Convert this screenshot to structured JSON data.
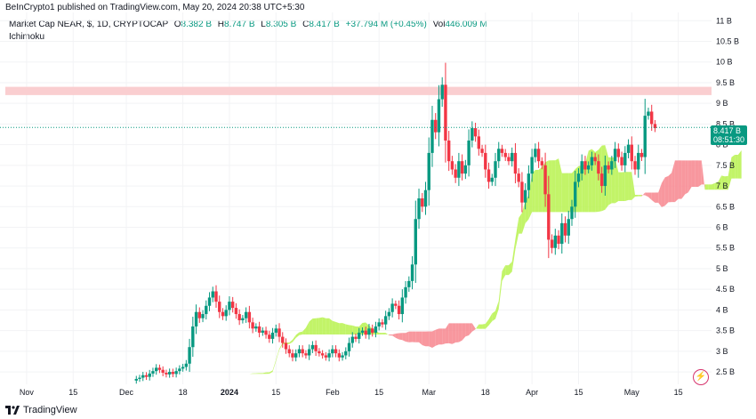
{
  "header": {
    "published": "BeInCrypto1 published on TradingView.com, May 20, 2024 20:38 UTC+5:30"
  },
  "legend": {
    "symbol": "Market Cap NEAR, $, 1D, CRYPTOCAP",
    "o_label": "O",
    "o_value": "8.382 B",
    "h_label": "H",
    "h_value": "8.747 B",
    "l_label": "L",
    "l_value": "8.305 B",
    "c_label": "C",
    "c_value": "8.417 B",
    "change": "+37.794 M (+0.45%)",
    "vol_label": "Vol",
    "vol_value": "446.009 M"
  },
  "indicator": {
    "name": "Ichimoku"
  },
  "price_tag": {
    "price": "8.417 B",
    "countdown": "08:51:30"
  },
  "footer": {
    "brand": "TradingView"
  },
  "colors": {
    "up": "#089981",
    "down": "#f23645",
    "cloud_bull": "#b7f24d",
    "cloud_bear": "#f7858d",
    "resistance": "#f9c9cb",
    "grid": "#f2f3f5"
  },
  "icons": {
    "tv_logo": "tradingview-logo-icon",
    "bolt": "lightning-icon"
  },
  "chart_data": {
    "type": "candlestick",
    "title": "Market Cap NEAR, $, 1D, CRYPTOCAP",
    "y_unit": "B",
    "ylim": [
      2.2,
      11.2
    ],
    "y_ticks": [
      "11 B",
      "10.5 B",
      "10 B",
      "9.5 B",
      "9 B",
      "8.5 B",
      "8 B",
      "7.5 B",
      "7 B",
      "6.5 B",
      "6 B",
      "5.5 B",
      "5 B",
      "4.5 B",
      "4 B",
      "3.5 B",
      "3 B",
      "2.5 B"
    ],
    "y_tick_values": [
      11,
      10.5,
      10,
      9.5,
      9,
      8.5,
      8,
      7.5,
      7,
      6.5,
      6,
      5.5,
      5,
      4.5,
      4,
      3.5,
      3,
      2.5
    ],
    "x_ticks": [
      "Nov",
      "15",
      "Dec",
      "18",
      "2024",
      "15",
      "Feb",
      "15",
      "Mar",
      "18",
      "Apr",
      "15",
      "May",
      "15"
    ],
    "x_tick_dates": [
      "2023-11-01",
      "2023-11-15",
      "2023-12-01",
      "2023-12-18",
      "2024-01-01",
      "2024-01-15",
      "2024-02-01",
      "2024-02-15",
      "2024-03-01",
      "2024-03-18",
      "2024-04-01",
      "2024-04-15",
      "2024-05-01",
      "2024-05-15"
    ],
    "x_range": [
      "2023-10-24",
      "2024-05-25"
    ],
    "start_date": "2023-12-04",
    "resistance_zone": [
      9.2,
      9.4
    ],
    "last_close": 8.417,
    "closes": [
      2.33,
      2.36,
      2.42,
      2.38,
      2.46,
      2.52,
      2.6,
      2.55,
      2.48,
      2.44,
      2.5,
      2.45,
      2.52,
      2.58,
      2.62,
      2.7,
      3.1,
      3.6,
      3.95,
      3.8,
      3.9,
      4.1,
      4.3,
      4.45,
      4.2,
      3.95,
      3.85,
      4.0,
      4.2,
      4.05,
      3.9,
      3.75,
      3.8,
      3.95,
      3.7,
      3.55,
      3.6,
      3.45,
      3.5,
      3.4,
      3.3,
      3.45,
      3.55,
      3.35,
      3.2,
      3.05,
      2.95,
      2.85,
      2.95,
      3.05,
      2.95,
      2.9,
      3.05,
      3.15,
      3.0,
      2.95,
      2.9,
      2.85,
      2.95,
      3.05,
      2.95,
      2.85,
      2.9,
      3.0,
      3.2,
      3.35,
      3.3,
      3.45,
      3.5,
      3.4,
      3.55,
      3.45,
      3.6,
      3.7,
      3.65,
      3.85,
      3.95,
      4.15,
      4.1,
      3.9,
      4.3,
      4.55,
      4.7,
      5.1,
      6.2,
      6.7,
      6.5,
      6.9,
      7.8,
      8.6,
      8.3,
      9.1,
      9.45,
      8.1,
      7.6,
      7.4,
      7.2,
      7.6,
      7.3,
      7.5,
      8.1,
      8.4,
      8.2,
      7.9,
      7.8,
      7.4,
      7.1,
      7.2,
      7.6,
      7.9,
      7.8,
      7.7,
      7.6,
      7.8,
      7.3,
      7.1,
      6.6,
      6.9,
      7.3,
      7.7,
      7.9,
      7.6,
      7.5,
      6.8,
      5.7,
      5.5,
      5.8,
      5.6,
      6.1,
      5.8,
      6.2,
      6.5,
      7.1,
      7.3,
      7.6,
      7.4,
      7.5,
      7.7,
      7.6,
      7.3,
      7.0,
      7.5,
      7.4,
      7.6,
      7.9,
      7.7,
      7.5,
      7.8,
      8.0,
      7.6,
      7.4,
      7.8,
      7.7,
      8.7,
      8.8,
      8.5,
      8.4
    ]
  }
}
